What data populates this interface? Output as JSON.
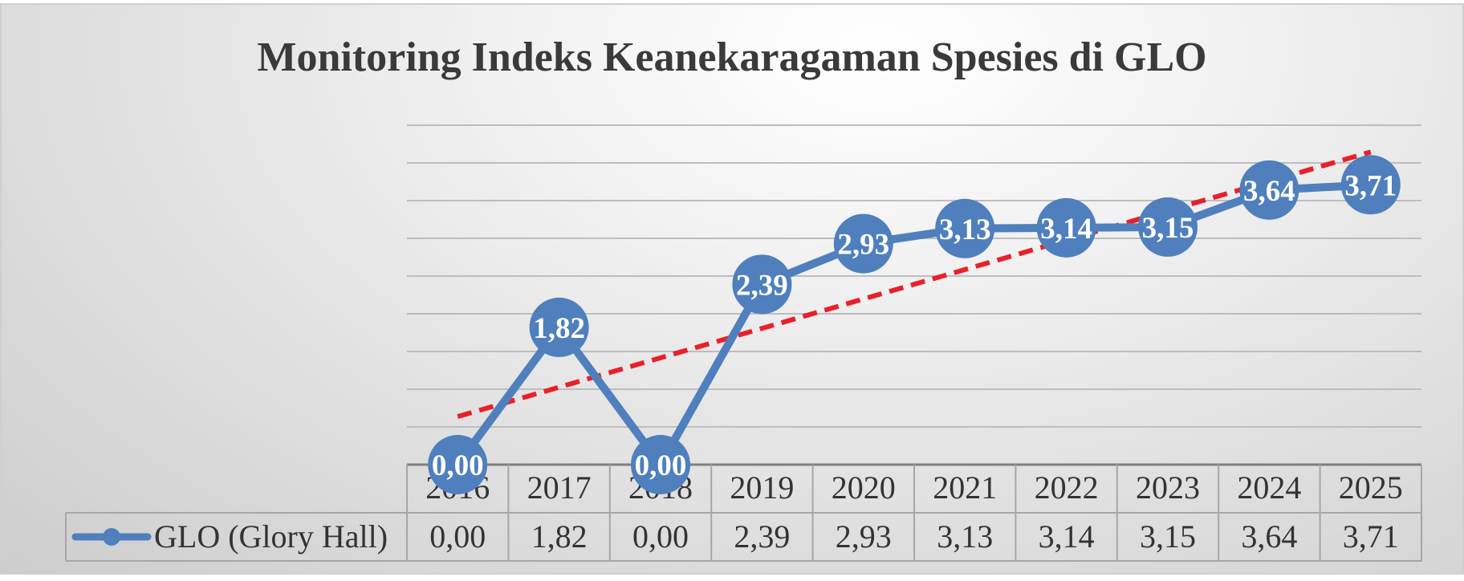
{
  "chart_data": {
    "type": "line",
    "title": "Monitoring Indeks Keanekaragaman Spesies di GLO",
    "categories": [
      "2016",
      "2017",
      "2018",
      "2019",
      "2020",
      "2021",
      "2022",
      "2023",
      "2024",
      "2025"
    ],
    "series": [
      {
        "name": "GLO (Glory Hall)",
        "values": [
          0.0,
          1.82,
          0.0,
          2.39,
          2.93,
          3.13,
          3.14,
          3.15,
          3.64,
          3.71
        ],
        "labels": [
          "0,00",
          "1,82",
          "0,00",
          "2,39",
          "2,93",
          "3,13",
          "3,14",
          "3,15",
          "3,64",
          "3,71"
        ],
        "color": "#4f7fbd"
      }
    ],
    "trendline": {
      "type": "linear",
      "color": "#e8202a",
      "style": "dashed"
    },
    "data_table": true,
    "legend": "data-table-row",
    "ylim": [
      0,
      4.5
    ],
    "y_grid_step": 0.5,
    "grid": true,
    "xlabel": "",
    "ylabel": ""
  }
}
